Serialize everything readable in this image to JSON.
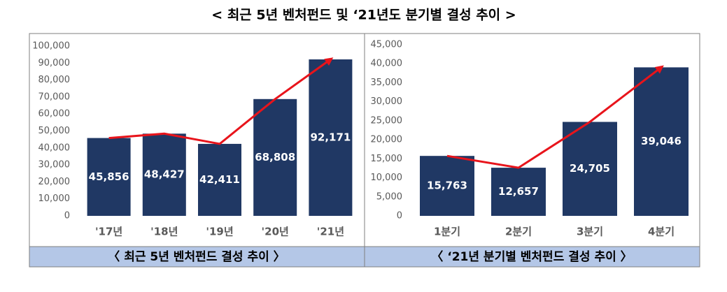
{
  "title": "< 최근 5년 벤처펀드 및 ‘21년도 분기별 결성 추이 >",
  "chart_data": [
    {
      "type": "bar",
      "caption": "〈 최근 5년 벤처펀드 결성 추이 〉",
      "categories": [
        "'17년",
        "'18년",
        "'19년",
        "'20년",
        "'21년"
      ],
      "values": [
        45856,
        48427,
        42411,
        68808,
        92171
      ],
      "value_labels": [
        "45,856",
        "48,427",
        "42,411",
        "68,808",
        "92,171"
      ],
      "color": "#203864",
      "trend_color": "#e8141b",
      "ylim": [
        0,
        100000
      ],
      "yticks": [
        0,
        {
          "value": 10000,
          "label": "10,000"
        },
        {
          "value": 20000,
          "label": "20,000"
        },
        {
          "value": 30000,
          "label": "30,000"
        },
        {
          "value": 40000,
          "label": "40,000"
        },
        {
          "value": 50000,
          "label": "50,000"
        },
        {
          "value": 60000,
          "label": "60,000"
        },
        {
          "value": 70000,
          "label": "70,000"
        },
        {
          "value": 80000,
          "label": "80,000"
        },
        {
          "value": 90000,
          "label": "90,000"
        },
        {
          "value": 100000,
          "label": "100,000"
        }
      ]
    },
    {
      "type": "bar",
      "caption": "〈 ‘21년 분기별 벤처펀드 결성 추이 〉",
      "categories": [
        "1분기",
        "2분기",
        "3분기",
        "4분기"
      ],
      "values": [
        15763,
        12657,
        24705,
        39046
      ],
      "value_labels": [
        "15,763",
        "12,657",
        "24,705",
        "39,046"
      ],
      "color": "#203864",
      "trend_color": "#e8141b",
      "ylim": [
        0,
        45000
      ],
      "yticks": [
        0,
        {
          "value": 5000,
          "label": "5,000"
        },
        {
          "value": 10000,
          "label": "10,000"
        },
        {
          "value": 15000,
          "label": "15,000"
        },
        {
          "value": 20000,
          "label": "20,000"
        },
        {
          "value": 25000,
          "label": "25,000"
        },
        {
          "value": 30000,
          "label": "30,000"
        },
        {
          "value": 35000,
          "label": "35,000"
        },
        {
          "value": 40000,
          "label": "40,000"
        },
        {
          "value": 45000,
          "label": "45,000"
        }
      ]
    }
  ]
}
